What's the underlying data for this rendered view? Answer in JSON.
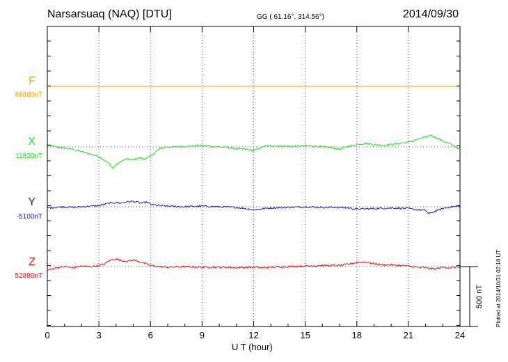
{
  "header": {
    "station": "Narsarsuaq (NAQ)  [DTU]",
    "coords": "GG ( 61.16°, 314.56°)",
    "date": "2014/09/30"
  },
  "footer": {
    "plotted": "Plotted at 2014/10/31 02:18 UT"
  },
  "colors": {
    "F": "#f2a900",
    "X": "#22dd22",
    "Y": "#1a1acc",
    "Z": "#dd1111"
  },
  "chart_data": {
    "type": "line",
    "title": "Narsarsuaq (NAQ)  [DTU]",
    "xlabel": "U T (hour)",
    "ylabel": "",
    "xlim": [
      0,
      24
    ],
    "x_ticks": [
      0,
      3,
      6,
      9,
      12,
      15,
      18,
      21,
      24
    ],
    "x_tick_labels": [
      "0",
      "3",
      "6",
      "9",
      "12",
      "15",
      "18",
      "21",
      "24"
    ],
    "grid": true,
    "scale_bar": {
      "value_nT": 500,
      "label": "500 nT"
    },
    "series": [
      {
        "name": "F",
        "baseline_label": "88880nT",
        "baseline_nT": 88880,
        "x": [
          0,
          24
        ],
        "dev_nT": [
          0,
          0
        ]
      },
      {
        "name": "X",
        "baseline_label": "11820nT",
        "baseline_nT": 11820,
        "x": [
          0,
          0.5,
          1,
          1.5,
          2,
          2.5,
          3,
          3.3,
          3.6,
          3.8,
          4,
          4.3,
          4.6,
          5,
          5.3,
          5.6,
          6,
          6.3,
          6.6,
          7,
          7.5,
          8,
          8.5,
          9,
          9.5,
          10,
          10.5,
          11,
          11.5,
          12,
          12.3,
          12.6,
          13,
          13.5,
          14,
          14.5,
          15,
          15.5,
          16,
          16.5,
          17,
          17.5,
          18,
          18.5,
          19,
          19.5,
          20,
          20.5,
          21,
          21.5,
          22,
          22.3,
          22.7,
          23,
          23.5,
          24
        ],
        "dev_nT": [
          20,
          0,
          -10,
          -20,
          -40,
          -60,
          -80,
          -110,
          -140,
          -180,
          -150,
          -120,
          -100,
          -110,
          -90,
          -100,
          -80,
          -40,
          -10,
          0,
          0,
          5,
          10,
          12,
          5,
          0,
          -5,
          -15,
          -20,
          -30,
          -15,
          5,
          10,
          10,
          5,
          8,
          10,
          8,
          0,
          -5,
          -20,
          5,
          20,
          30,
          20,
          15,
          20,
          30,
          40,
          60,
          80,
          100,
          70,
          50,
          20,
          -20
        ]
      },
      {
        "name": "Y",
        "baseline_label": "-5100nT",
        "baseline_nT": -5100,
        "x": [
          0,
          0.5,
          1,
          1.5,
          2,
          2.5,
          3,
          3.3,
          3.6,
          4,
          4.3,
          4.6,
          5,
          5.5,
          5.8,
          6,
          6.5,
          7,
          8,
          9,
          10,
          11,
          11.5,
          12,
          12.3,
          12.6,
          13,
          14,
          15,
          16,
          17,
          17.5,
          18,
          19,
          20,
          21,
          21.5,
          22,
          22.2,
          22.5,
          23,
          23.5,
          24
        ],
        "dev_nT": [
          -10,
          -5,
          0,
          -5,
          0,
          5,
          10,
          20,
          30,
          35,
          30,
          40,
          45,
          30,
          40,
          20,
          10,
          5,
          0,
          5,
          0,
          -5,
          -15,
          -25,
          -20,
          -15,
          -10,
          -5,
          0,
          -5,
          -5,
          -10,
          -20,
          -15,
          -10,
          -15,
          -25,
          -30,
          -60,
          -40,
          -15,
          0,
          5
        ]
      },
      {
        "name": "Z",
        "baseline_label": "52880nT",
        "baseline_nT": 52880,
        "x": [
          0,
          0.5,
          1,
          1.5,
          2,
          2.5,
          3,
          3.3,
          3.6,
          4,
          4.3,
          4.6,
          5,
          5.3,
          5.6,
          6,
          6.5,
          7,
          8,
          9,
          10,
          11,
          12,
          12.5,
          13,
          14,
          15,
          16,
          17,
          17.5,
          18,
          18.5,
          19,
          19.5,
          20,
          21,
          21.5,
          22,
          22.5,
          23,
          23.5,
          24
        ],
        "dev_nT": [
          -30,
          -10,
          0,
          -10,
          5,
          0,
          10,
          20,
          50,
          65,
          50,
          45,
          55,
          45,
          30,
          10,
          0,
          -5,
          0,
          -5,
          -5,
          -8,
          -5,
          -10,
          -5,
          0,
          5,
          10,
          10,
          20,
          35,
          40,
          25,
          15,
          15,
          5,
          -5,
          -10,
          -20,
          -5,
          -10,
          0
        ]
      }
    ]
  }
}
